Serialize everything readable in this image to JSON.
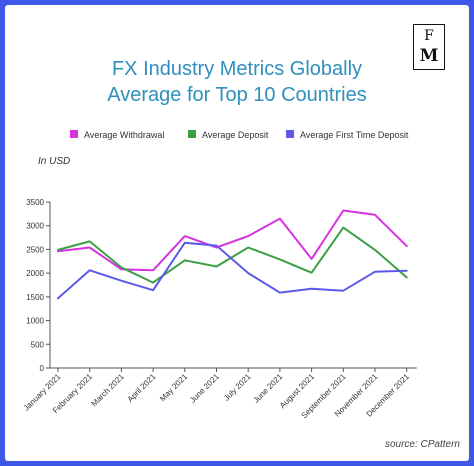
{
  "title_line1": "FX Industry Metrics Globally",
  "title_line2": "Average for Top 10 Countries",
  "logo_line1": "F",
  "logo_line2": "M",
  "unit_label": "In USD",
  "source": "source: CPattern",
  "chart_data": {
    "type": "line",
    "categories": [
      "January 2021",
      "February 2021",
      "March 2021",
      "April 2021",
      "May 2021",
      "June 2021",
      "July 2021",
      "June 2021",
      "August 2021",
      "September 2021",
      "November 2021",
      "December 2021"
    ],
    "series": [
      {
        "name": "Average Withdrawal",
        "color": "#d633e0",
        "values": [
          2460,
          2540,
          2080,
          2060,
          2780,
          2540,
          2780,
          3150,
          2300,
          3320,
          3230,
          2570
        ]
      },
      {
        "name": "Average Deposit",
        "color": "#3aa043",
        "values": [
          2490,
          2670,
          2120,
          1800,
          2270,
          2140,
          2540,
          2290,
          2010,
          2960,
          2490,
          1910
        ]
      },
      {
        "name": "Average First Time Deposit",
        "color": "#5b5ae8",
        "values": [
          1470,
          2060,
          1840,
          1640,
          2640,
          2580,
          2000,
          1590,
          1670,
          1630,
          2030,
          2050
        ]
      }
    ],
    "ylim": [
      0,
      3500
    ],
    "yticks": [
      0,
      500,
      1000,
      1500,
      2000,
      2500,
      3000,
      3500
    ],
    "grid": false,
    "legend": "top"
  }
}
